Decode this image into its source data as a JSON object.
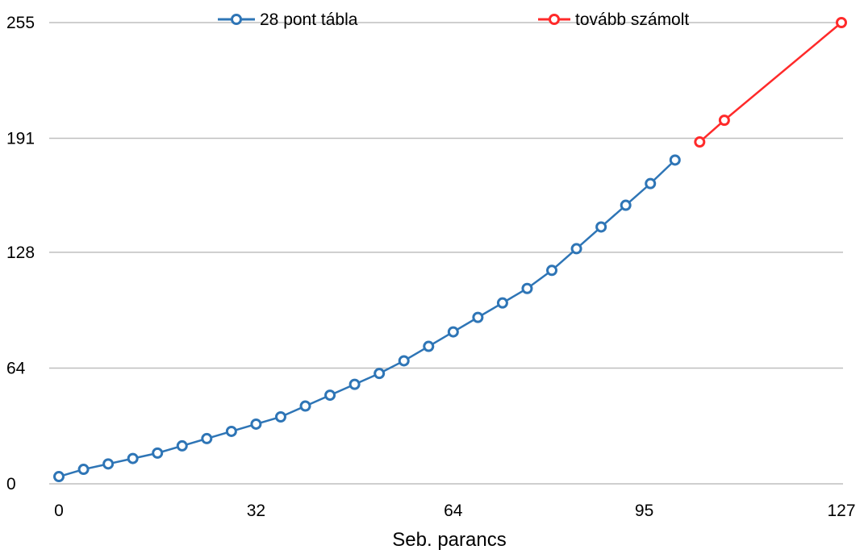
{
  "chart_data": {
    "type": "line",
    "title": "",
    "xlabel": "Seb. parancs",
    "ylabel": "",
    "xlim": [
      0,
      127
    ],
    "ylim": [
      0,
      255
    ],
    "x_ticks": [
      0,
      32,
      64,
      95,
      127
    ],
    "y_ticks": [
      0,
      64,
      128,
      191,
      255
    ],
    "grid": "horizontal",
    "legend_position": "top",
    "series": [
      {
        "name": "28 pont tábla",
        "color": "#2E75B6",
        "marker": "circle",
        "x": [
          0,
          4,
          8,
          12,
          16,
          20,
          24,
          28,
          32,
          36,
          40,
          44,
          48,
          52,
          56,
          60,
          64,
          68,
          72,
          76,
          80,
          84,
          88,
          92,
          96,
          100
        ],
        "y": [
          4,
          8,
          11,
          14,
          17,
          21,
          25,
          29,
          33,
          37,
          43,
          49,
          55,
          61,
          68,
          76,
          84,
          92,
          100,
          108,
          118,
          130,
          142,
          154,
          166,
          179
        ]
      },
      {
        "name": "tovább számolt",
        "color": "#FF2A2A",
        "marker": "circle",
        "x": [
          104,
          108,
          127
        ],
        "y": [
          189,
          201,
          255
        ]
      }
    ]
  }
}
